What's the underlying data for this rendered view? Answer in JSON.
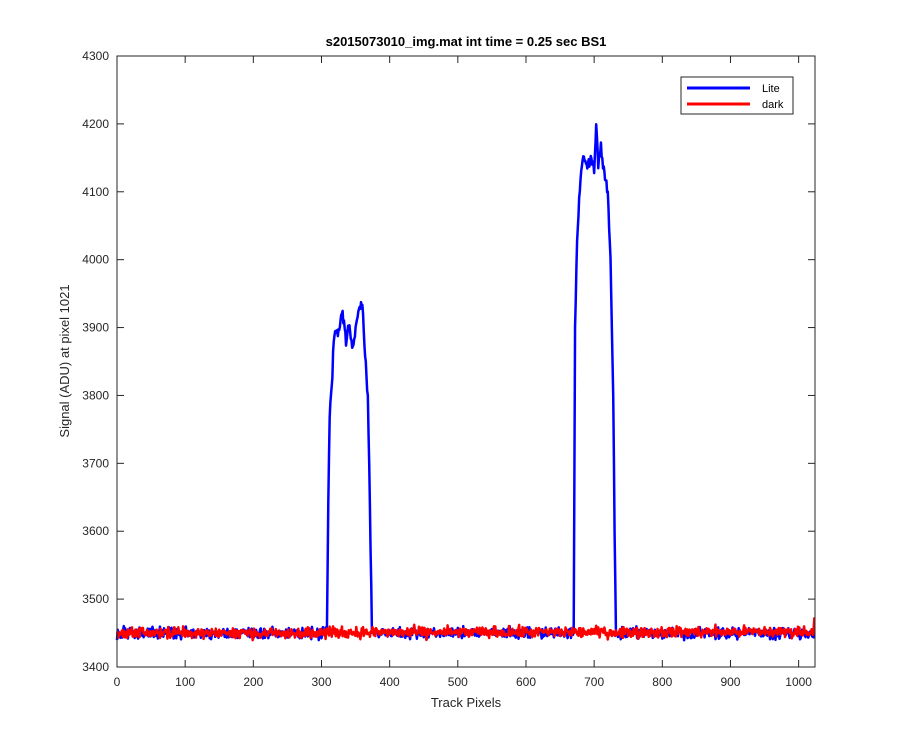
{
  "chart_data": {
    "type": "line",
    "title": "s2015073010_img.mat int time = 0.25 sec   BS1",
    "xlabel": "Track Pixels",
    "ylabel": "Signal (ADU) at pixel 1021",
    "xlim": [
      0,
      1024
    ],
    "ylim": [
      3400,
      4300
    ],
    "xticks": [
      0,
      100,
      200,
      300,
      400,
      500,
      600,
      700,
      800,
      900,
      1000
    ],
    "yticks": [
      3400,
      3500,
      3600,
      3700,
      3800,
      3900,
      4000,
      4100,
      4200,
      4300
    ],
    "grid": false,
    "legend_position": "top-right",
    "series": [
      {
        "name": "Lite",
        "color": "#0000ff",
        "baseline": 3450,
        "noise": 8,
        "profile": [
          [
            0,
            3450
          ],
          [
            307,
            3450
          ],
          [
            308,
            3452
          ],
          [
            310,
            3650
          ],
          [
            312,
            3770
          ],
          [
            316,
            3830
          ],
          [
            318,
            3880
          ],
          [
            320,
            3900
          ],
          [
            326,
            3895
          ],
          [
            330,
            3925
          ],
          [
            336,
            3880
          ],
          [
            340,
            3905
          ],
          [
            346,
            3870
          ],
          [
            350,
            3900
          ],
          [
            356,
            3930
          ],
          [
            360,
            3935
          ],
          [
            364,
            3860
          ],
          [
            368,
            3800
          ],
          [
            370,
            3700
          ],
          [
            372,
            3580
          ],
          [
            374,
            3450
          ],
          [
            669,
            3450
          ],
          [
            670,
            3455
          ],
          [
            672,
            3900
          ],
          [
            675,
            4030
          ],
          [
            680,
            4120
          ],
          [
            684,
            4150
          ],
          [
            690,
            4135
          ],
          [
            696,
            4150
          ],
          [
            700,
            4130
          ],
          [
            703,
            4200
          ],
          [
            706,
            4140
          ],
          [
            710,
            4165
          ],
          [
            716,
            4120
          ],
          [
            720,
            4100
          ],
          [
            724,
            4000
          ],
          [
            728,
            3800
          ],
          [
            730,
            3600
          ],
          [
            732,
            3450
          ],
          [
            1024,
            3450
          ]
        ]
      },
      {
        "name": "dark",
        "color": "#ff0000",
        "baseline": 3450,
        "noise": 8,
        "profile": [
          [
            0,
            3450
          ],
          [
            1020,
            3452
          ],
          [
            1024,
            3472
          ]
        ]
      }
    ]
  }
}
